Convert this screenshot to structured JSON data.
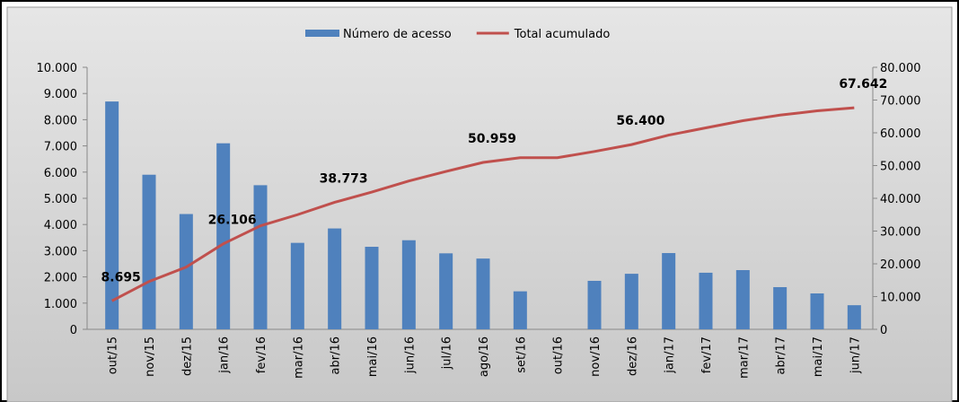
{
  "chart_data": {
    "type": "bar_line",
    "categories": [
      "out/15",
      "nov/15",
      "dez/15",
      "jan/16",
      "fev/16",
      "mar/16",
      "abr/16",
      "mai/16",
      "jun/16",
      "jul/16",
      "ago/16",
      "set/16",
      "out/16",
      "nov/16",
      "dez/16",
      "jan/17",
      "fev/17",
      "mar/17",
      "abr/17",
      "mai/17",
      "jun/17"
    ],
    "series": [
      {
        "name": "Número de acesso",
        "type": "bar",
        "color": "#4f81bd",
        "values": [
          8695,
          5900,
          4400,
          7100,
          5500,
          3300,
          3850,
          3150,
          3400,
          2900,
          2700,
          1450,
          0,
          1850,
          2120,
          2910,
          2160,
          2260,
          1610,
          1370,
          920
        ]
      },
      {
        "name": "Total acumulado",
        "type": "line",
        "axis": "y2",
        "color": "#c0504d",
        "values": [
          8695,
          14600,
          19000,
          26106,
          31600,
          35000,
          38773,
          41900,
          45300,
          48200,
          50959,
          52400,
          52400,
          54300,
          56400,
          59300,
          61500,
          63700,
          65400,
          66700,
          67642
        ],
        "value_labels": [
          "8.695",
          null,
          null,
          "26.106",
          null,
          null,
          "38.773",
          null,
          null,
          null,
          "50.959",
          null,
          null,
          null,
          "56.400",
          null,
          null,
          null,
          null,
          null,
          "67.642"
        ]
      }
    ],
    "ylim": [
      0,
      10000
    ],
    "yticks": [
      0,
      {
        "value": 1000,
        "label": "1.000"
      },
      {
        "value": 2000,
        "label": "2.000"
      },
      {
        "value": 3000,
        "label": "3.000"
      },
      {
        "value": 4000,
        "label": "4.000"
      },
      {
        "value": 5000,
        "label": "5.000"
      },
      {
        "value": 6000,
        "label": "6.000"
      },
      {
        "value": 7000,
        "label": "7.000"
      },
      {
        "value": 8000,
        "label": "8.000"
      },
      {
        "value": 9000,
        "label": "9.000"
      },
      {
        "value": 10000,
        "label": "10.000"
      }
    ],
    "y2lim": [
      0,
      80000
    ],
    "y2ticks": [
      0,
      {
        "value": 10000,
        "label": "10.000"
      },
      {
        "value": 20000,
        "label": "20.000"
      },
      {
        "value": 30000,
        "label": "30.000"
      },
      {
        "value": 40000,
        "label": "40.000"
      },
      {
        "value": 50000,
        "label": "50.000"
      },
      {
        "value": 60000,
        "label": "60.000"
      },
      {
        "value": 70000,
        "label": "70.000"
      },
      {
        "value": 80000,
        "label": "80.000"
      }
    ],
    "legend": "top"
  }
}
